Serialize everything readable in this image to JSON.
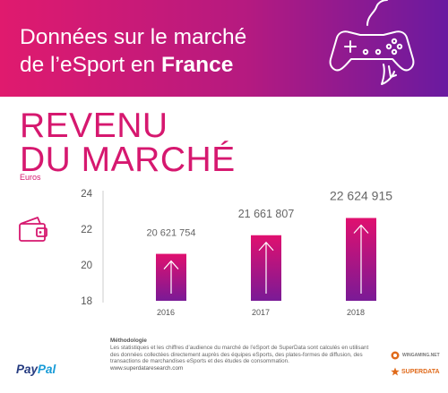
{
  "header": {
    "line1": "Données sur le marché",
    "line2_prefix": "de l’eSport en ",
    "line2_bold": "France"
  },
  "section": {
    "title_line1": "REVENU",
    "title_line2": "DU MARCHÉ",
    "unit": "Euros"
  },
  "colors": {
    "header_start": "#e01a6e",
    "header_end": "#6a1aa0",
    "accent": "#d6186f",
    "bar_top": "#e0106f",
    "bar_bottom": "#7a1a96"
  },
  "chart_data": {
    "type": "bar",
    "categories": [
      "2016",
      "2017",
      "2018"
    ],
    "values": [
      20.621754,
      21.661807,
      22.624915
    ],
    "data_labels": [
      "20 621 754",
      "21 661 807",
      "22 624 915"
    ],
    "yticks": [
      "18",
      "20",
      "22",
      "24"
    ],
    "ylim": [
      18,
      24
    ],
    "ylabel": "Euros",
    "grid": false
  },
  "footer": {
    "methodology_title": "Méthodologie",
    "methodology_text": "Les statistiques et les chiffres d’audience du marché de l’eSport de SuperData sont calculés en utilisant des données collectées directement auprès des équipes eSports, des plates-formes de diffusion, des transactions de marchandises eSports et des études de consommation.",
    "link": "www.superdataresearch.com",
    "paypal_pay": "Pay",
    "paypal_pal": "Pal",
    "logo1": "WINGAMING.NET",
    "logo2": "SUPERDATA"
  },
  "icons": {
    "header": "gamepad-icon",
    "wallet": "wallet-icon",
    "bar": "arrow-up-icon"
  }
}
